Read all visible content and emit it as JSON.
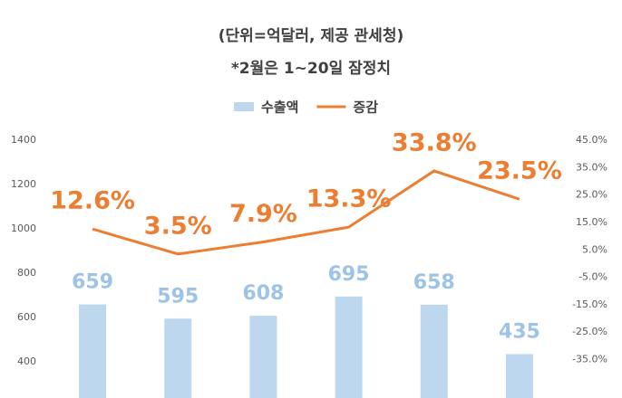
{
  "chart_data": {
    "type": "combo",
    "title": "(단위=억달러, 제공 관세청)",
    "subtitle": "*2월은 1~20일 잠정치",
    "categories": [
      null,
      null,
      null,
      null,
      null,
      null
    ],
    "series": [
      {
        "name": "수출액",
        "type": "bar",
        "color": "#bdd7ee",
        "label_color": "#9dc3e6",
        "values": [
          659,
          595,
          608,
          695,
          658,
          435
        ]
      },
      {
        "name": "증감",
        "type": "line",
        "color": "#ed7d31",
        "axis": "y2",
        "values": [
          12.6,
          3.5,
          7.9,
          13.3,
          33.8,
          23.5
        ],
        "value_labels": [
          "12.6%",
          "3.5%",
          "7.9%",
          "13.3%",
          "33.8%",
          "23.5%"
        ]
      }
    ],
    "ylim": [
      237,
      1400
    ],
    "yticks": [
      400,
      600,
      800,
      1000,
      1200,
      1400
    ],
    "y2lim": [
      -49,
      45
    ],
    "y2ticks": [
      {
        "value": 45,
        "label": "45.0%"
      },
      {
        "value": 35,
        "label": "35.0%"
      },
      {
        "value": 25,
        "label": "25.0%"
      },
      {
        "value": 15,
        "label": "15.0%"
      },
      {
        "value": 5,
        "label": "5.0%"
      },
      {
        "value": -5,
        "label": "-5.0%"
      },
      {
        "value": -15,
        "label": "-15.0%"
      },
      {
        "value": -25,
        "label": "-25.0%"
      },
      {
        "value": -35,
        "label": "-35.0%"
      }
    ],
    "legend": "top",
    "grid": false
  }
}
